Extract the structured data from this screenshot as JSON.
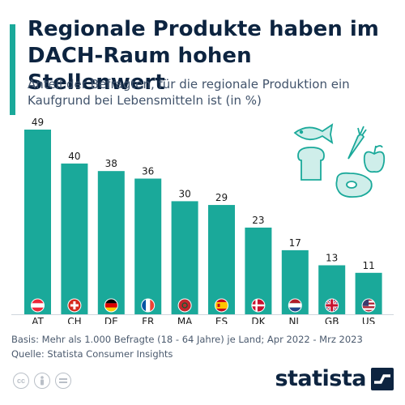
{
  "title": "Regionale Produkte haben im DACH-Raum hohen Stellenwert",
  "subtitle": "Anteil der Befragten, für die regionale Produktion ein Kaufgrund bei Lebensmitteln ist (in %)",
  "footer": {
    "basis": "Basis: Mehr als 1.000 Befragte (18 - 64 Jahre) je Land; Apr 2022 - Mrz 2023",
    "source": "Quelle: Statista Consumer Insights"
  },
  "brand": "statista",
  "colors": {
    "bar": "#1aa99a",
    "title": "#0d2440",
    "accent": "#1aa99a"
  },
  "icons": [
    "fish-icon",
    "carrot-icon",
    "bread-icon",
    "apple-icon",
    "meat-icon",
    "cc-icon",
    "by-icon",
    "nd-icon",
    "statista-logo-icon"
  ],
  "chart_data": {
    "type": "bar",
    "categories": [
      "AT",
      "CH",
      "DE",
      "FR",
      "MA",
      "ES",
      "DK",
      "NL",
      "GB",
      "US"
    ],
    "values": [
      49,
      40,
      38,
      36,
      30,
      29,
      23,
      17,
      13,
      11
    ],
    "ylim": [
      0,
      49
    ],
    "grid": false,
    "flags": [
      "austria-flag-icon",
      "switzerland-flag-icon",
      "germany-flag-icon",
      "france-flag-icon",
      "morocco-flag-icon",
      "spain-flag-icon",
      "denmark-flag-icon",
      "netherlands-flag-icon",
      "uk-flag-icon",
      "usa-flag-icon"
    ]
  }
}
